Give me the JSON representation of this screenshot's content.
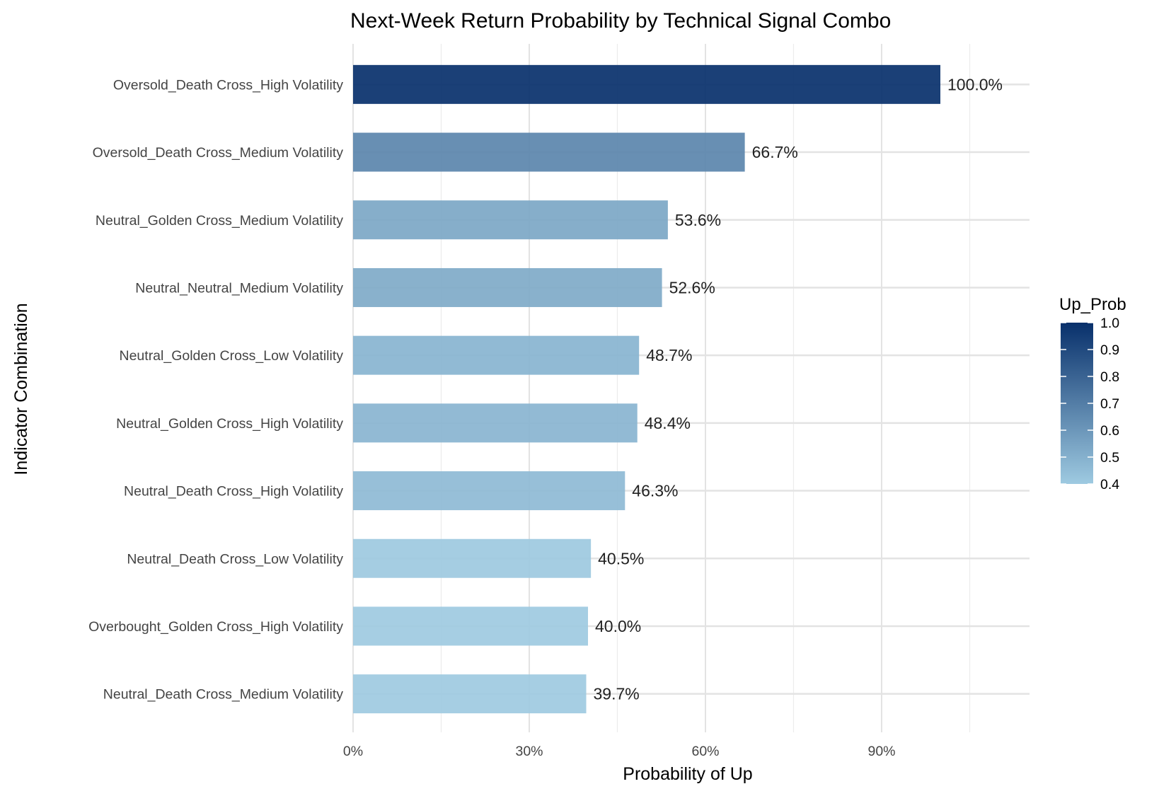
{
  "chart_data": {
    "type": "bar",
    "orientation": "horizontal",
    "title": "Next-Week Return Probability by Technical Signal Combo",
    "xlabel": "Probability of Up",
    "ylabel": "Indicator Combination",
    "xlim": [
      0,
      1.15
    ],
    "x_ticks": [
      0,
      0.3,
      0.6,
      0.9
    ],
    "x_tick_labels": [
      "0%",
      "30%",
      "60%",
      "90%"
    ],
    "grid": true,
    "categories": [
      "Oversold_Death Cross_High Volatility",
      "Oversold_Death Cross_Medium Volatility",
      "Neutral_Golden Cross_Medium Volatility",
      "Neutral_Neutral_Medium Volatility",
      "Neutral_Golden Cross_Low Volatility",
      "Neutral_Golden Cross_High Volatility",
      "Neutral_Death Cross_High Volatility",
      "Neutral_Death Cross_Low Volatility",
      "Overbought_Golden Cross_High Volatility",
      "Neutral_Death Cross_Medium Volatility"
    ],
    "values": [
      1.0,
      0.667,
      0.536,
      0.526,
      0.487,
      0.484,
      0.463,
      0.405,
      0.4,
      0.397
    ],
    "data_labels": [
      "100.0%",
      "66.7%",
      "53.6%",
      "52.6%",
      "48.7%",
      "48.4%",
      "46.3%",
      "40.5%",
      "40.0%",
      "39.7%"
    ],
    "legend": {
      "title": "Up_Prob",
      "position": "right",
      "range": [
        0.4,
        1.0
      ],
      "ticks": [
        1.0,
        0.9,
        0.8,
        0.7,
        0.6,
        0.5,
        0.4
      ],
      "tick_labels": [
        "1.0",
        "0.9",
        "0.8",
        "0.7",
        "0.6",
        "0.5",
        "0.4"
      ],
      "color_low": "#9ecae1",
      "color_high": "#08306b"
    }
  }
}
